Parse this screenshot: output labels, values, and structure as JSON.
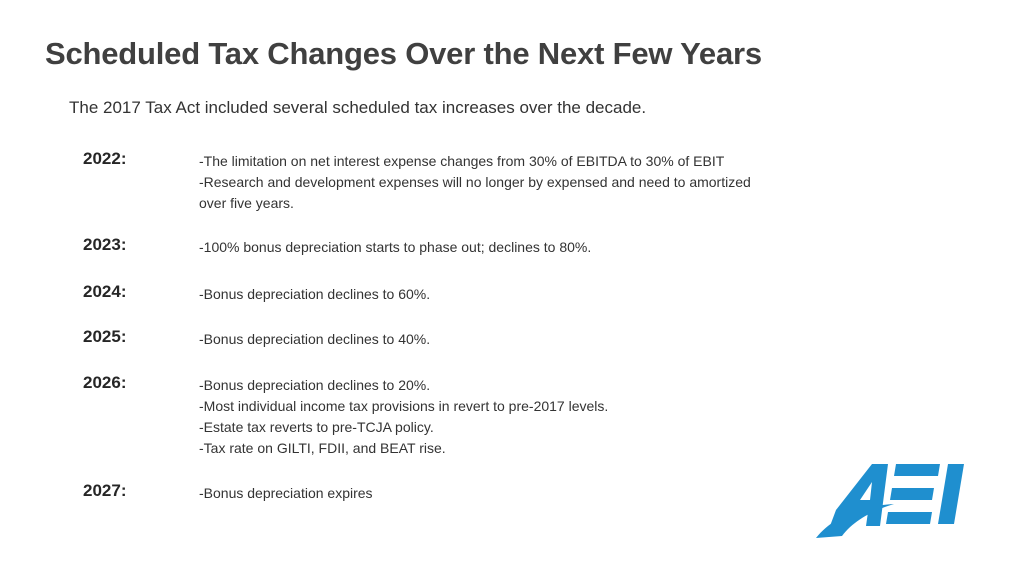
{
  "slide": {
    "title": "Scheduled Tax Changes Over the Next Few Years",
    "intro": "The 2017 Tax Act included several scheduled tax increases over the decade."
  },
  "schedule": [
    {
      "year": "2022:",
      "items": [
        "-The limitation on net interest expense changes from 30% of EBITDA to 30% of EBIT",
        "-Research and development expenses will no longer by expensed and need to amortized over five years."
      ]
    },
    {
      "year": "2023:",
      "items": [
        "-100% bonus depreciation starts to phase out; declines to 80%."
      ]
    },
    {
      "year": "2024:",
      "items": [
        "-Bonus depreciation declines to 60%."
      ]
    },
    {
      "year": "2025:",
      "items": [
        "-Bonus depreciation declines to 40%."
      ]
    },
    {
      "year": "2026:",
      "items": [
        "-Bonus depreciation declines to 20%.",
        "-Most individual income tax provisions in revert to pre-2017 levels.",
        "-Estate tax reverts to pre-TCJA policy.",
        "-Tax rate on GILTI, FDII, and BEAT rise."
      ]
    },
    {
      "year": "2027:",
      "items": [
        "-Bonus depreciation expires"
      ]
    }
  ],
  "logo": {
    "text": "AEI",
    "icon": "aei-logo-icon",
    "color": "#1f8fcf"
  }
}
